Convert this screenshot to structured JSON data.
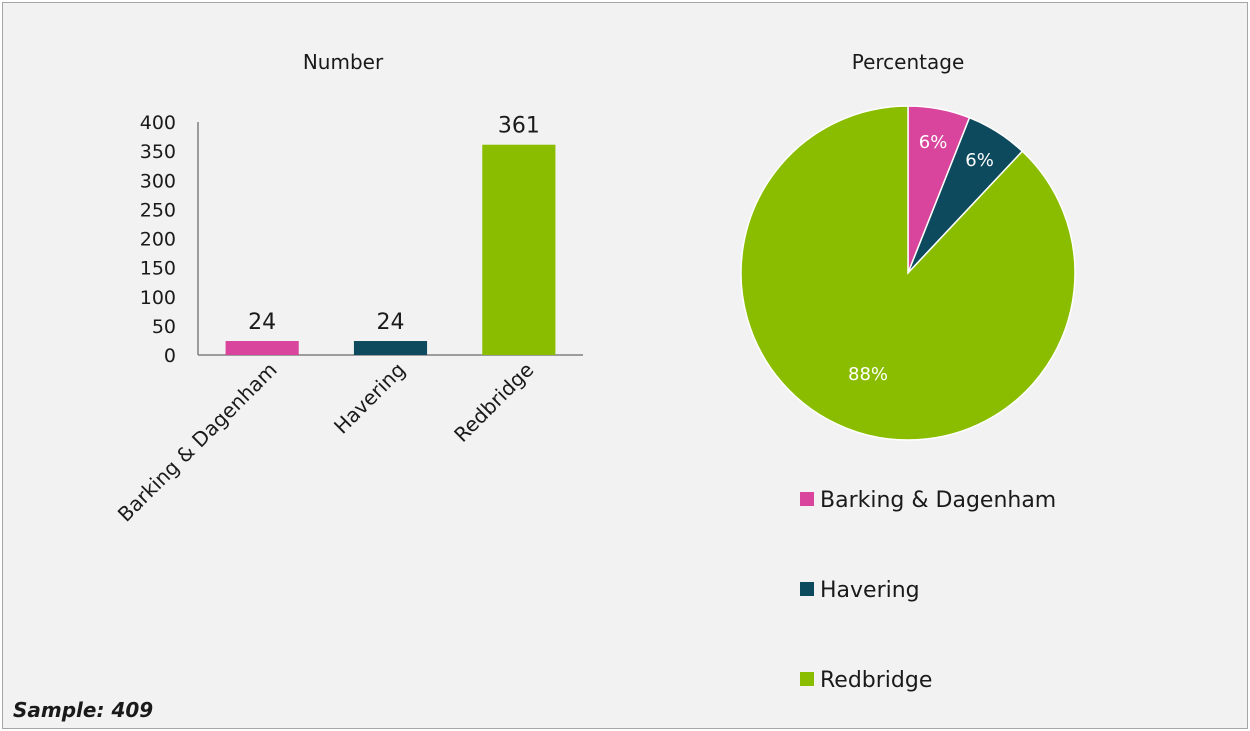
{
  "colors": {
    "background": "#f2f2f2",
    "border": "#a6a6a6",
    "axis": "#808080"
  },
  "sample_label": "Sample: 409",
  "chart_data": [
    {
      "type": "bar",
      "title": "Number",
      "categories": [
        "Barking & Dagenham",
        "Havering",
        "Redbridge"
      ],
      "values": [
        24,
        24,
        361
      ],
      "colors": [
        "#d9449c",
        "#0e4a5e",
        "#8abd00"
      ],
      "ylim": [
        0,
        400
      ],
      "yticks": [
        0,
        50,
        100,
        150,
        200,
        250,
        300,
        350,
        400
      ],
      "data_labels": [
        "24",
        "24",
        "361"
      ],
      "grid": false
    },
    {
      "type": "pie",
      "title": "Percentage",
      "labels": [
        "Barking & Dagenham",
        "Havering",
        "Redbridge"
      ],
      "values": [
        6,
        6,
        88
      ],
      "data_labels": [
        "6%",
        "6%",
        "88%"
      ],
      "colors": [
        "#d9449c",
        "#0e4a5e",
        "#8abd00"
      ],
      "legend": {
        "position": "bottom",
        "entries": [
          "Barking & Dagenham",
          "Havering",
          "Redbridge"
        ]
      }
    }
  ]
}
